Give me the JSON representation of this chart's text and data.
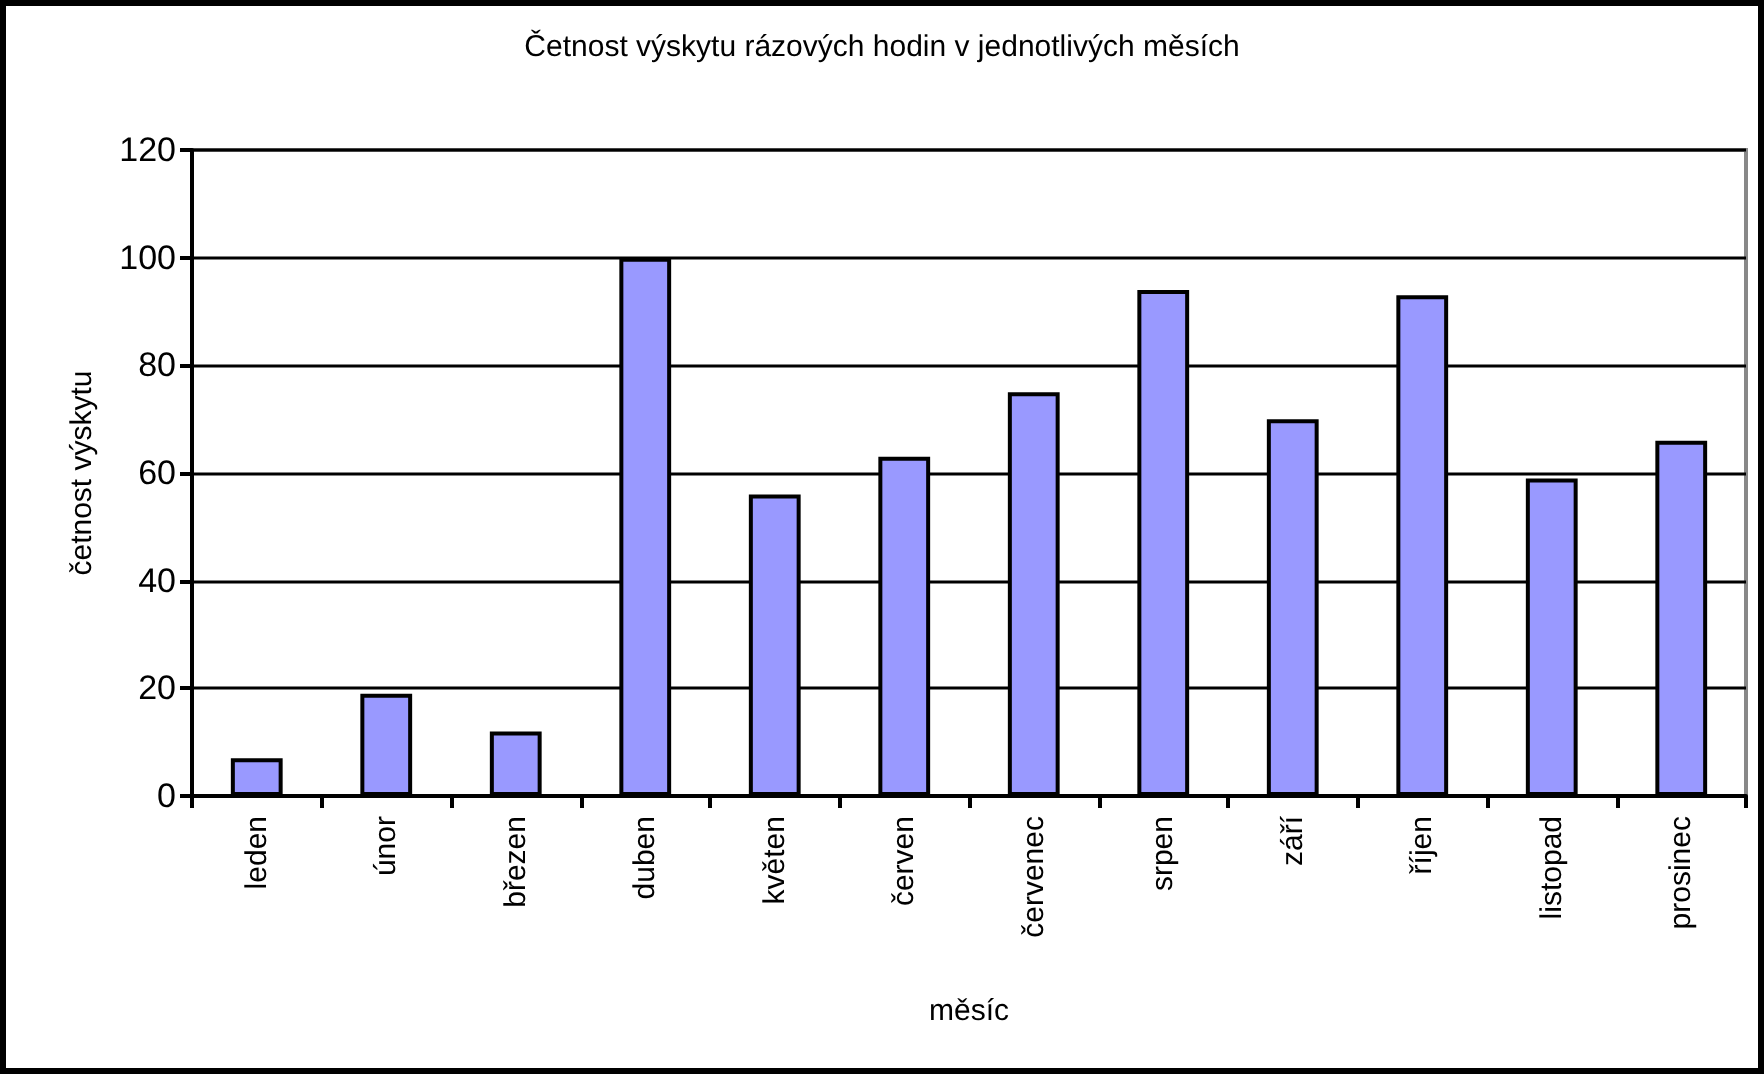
{
  "chart_data": {
    "type": "bar",
    "title": "Četnost výskytu rázových hodin v jednotlivých měsích",
    "xlabel": "měsíc",
    "ylabel": "četnost výskytu",
    "categories": [
      "leden",
      "únor",
      "březen",
      "duben",
      "květen",
      "červen",
      "červenec",
      "srpen",
      "září",
      "říjen",
      "listopad",
      "prosinec"
    ],
    "values": [
      7,
      19,
      12,
      100,
      56,
      63,
      75,
      94,
      70,
      93,
      59,
      66
    ],
    "color": "#9999ff",
    "ylim": [
      0,
      120
    ],
    "yticks": [
      0,
      20,
      40,
      60,
      80,
      100,
      120
    ],
    "grid": "y"
  }
}
